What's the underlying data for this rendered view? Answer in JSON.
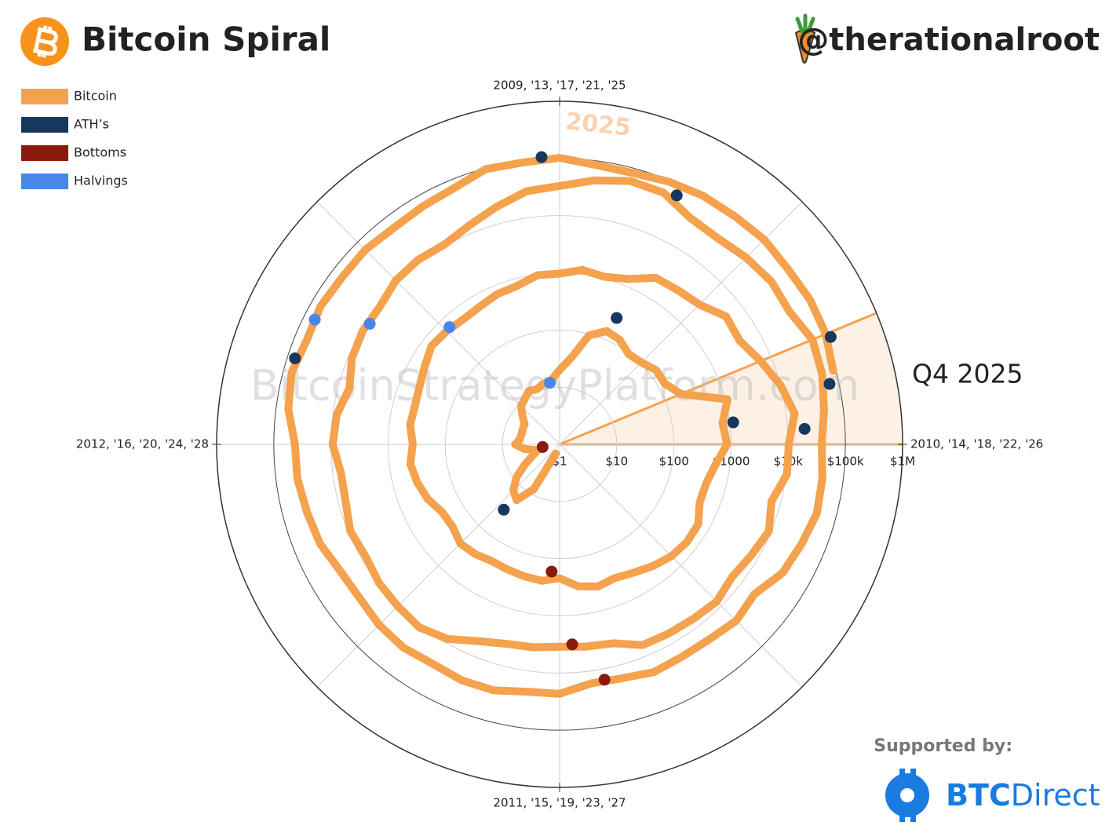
{
  "chart_data": {
    "type": "polar_spiral",
    "title": "Bitcoin Spiral",
    "handle": "@therationalroot",
    "sponsor": {
      "label": "Supported by:",
      "brand_bold": "BTC",
      "brand_light": "Direct"
    },
    "watermark": "BitcoinStrategyPlatform.com",
    "cycle_years": 4,
    "theta_start": 2009,
    "r_log": true,
    "rlim": [
      1,
      1000000
    ],
    "rticks": [
      {
        "value": 1,
        "label": "$1"
      },
      {
        "value": 10,
        "label": "$10"
      },
      {
        "value": 100,
        "label": "$100"
      },
      {
        "value": 1000,
        "label": "$1000"
      },
      {
        "value": 10000,
        "label": "$10k"
      },
      {
        "value": 100000,
        "label": "$100k"
      },
      {
        "value": 1000000,
        "label": "$1M"
      }
    ],
    "theta_ticks": [
      {
        "value": 2009,
        "label": "2009, '13, '17, '21, '25"
      },
      {
        "value": 2010,
        "label": "2010, '14, '18, '22, '26"
      },
      {
        "value": 2011,
        "label": "2011, '15, '19, '23, '27"
      },
      {
        "value": 2012,
        "label": "2012, '16, '20, '24, '28"
      }
    ],
    "highlight": {
      "label": "Q4 2025",
      "range": [
        2025.75,
        2026
      ],
      "color": "#f4a24e"
    },
    "year_annotation": {
      "text": "2025",
      "x": 2025
    },
    "series": [
      {
        "name": "Bitcoin",
        "color": "#f4a24e",
        "kind": "line",
        "x": [
          2011.25,
          2011.333,
          2011.417,
          2011.5,
          2011.583,
          2011.667,
          2011.75,
          2011.833,
          2011.917,
          2012,
          2012.083,
          2012.167,
          2012.25,
          2012.333,
          2012.417,
          2012.5,
          2012.583,
          2012.667,
          2012.75,
          2012.833,
          2012.917,
          2013,
          2013.083,
          2013.167,
          2013.25,
          2013.333,
          2013.417,
          2013.5,
          2013.583,
          2013.667,
          2013.75,
          2013.833,
          2013.917,
          2014,
          2014.083,
          2014.167,
          2014.25,
          2014.333,
          2014.417,
          2014.5,
          2014.583,
          2014.667,
          2014.75,
          2014.833,
          2014.917,
          2015,
          2015.083,
          2015.167,
          2015.25,
          2015.333,
          2015.417,
          2015.5,
          2015.583,
          2015.667,
          2015.75,
          2015.833,
          2015.917,
          2016,
          2016.083,
          2016.167,
          2016.25,
          2016.333,
          2016.417,
          2016.5,
          2016.583,
          2016.667,
          2016.75,
          2016.833,
          2016.917,
          2017,
          2017.083,
          2017.167,
          2017.25,
          2017.333,
          2017.417,
          2017.5,
          2017.583,
          2017.667,
          2017.75,
          2017.833,
          2017.917,
          2018,
          2018.083,
          2018.167,
          2018.25,
          2018.333,
          2018.417,
          2018.5,
          2018.583,
          2018.667,
          2018.75,
          2018.833,
          2018.917,
          2019,
          2019.083,
          2019.167,
          2019.25,
          2019.333,
          2019.417,
          2019.5,
          2019.583,
          2019.667,
          2019.75,
          2019.833,
          2019.917,
          2020,
          2020.083,
          2020.167,
          2020.25,
          2020.333,
          2020.417,
          2020.5,
          2020.583,
          2020.667,
          2020.75,
          2020.833,
          2020.917,
          2021,
          2021.083,
          2021.167,
          2021.25,
          2021.333,
          2021.417,
          2021.5,
          2021.583,
          2021.667,
          2021.75,
          2021.833,
          2021.917,
          2022,
          2022.083,
          2022.167,
          2022.25,
          2022.333,
          2022.417,
          2022.5,
          2022.583,
          2022.667,
          2022.75,
          2022.833,
          2022.917,
          2023,
          2023.083,
          2023.167,
          2023.25,
          2023.333,
          2023.417,
          2023.5,
          2023.583,
          2023.667,
          2023.75,
          2023.833,
          2023.917,
          2024,
          2024.083,
          2024.167,
          2024.25,
          2024.333,
          2024.417,
          2024.5,
          2024.583,
          2024.667,
          2024.75,
          2024.833,
          2024.917,
          2025,
          2025.083,
          2025.167,
          2025.25,
          2025.333,
          2025.417,
          2025.5,
          2025.583,
          2025.667,
          2025.75,
          2025.833
        ],
        "values": [
          1.5,
          8,
          17,
          14,
          9,
          5,
          3.2,
          2.5,
          4.2,
          6,
          5,
          4.9,
          5,
          5.1,
          6.6,
          9,
          10,
          12,
          11,
          12.5,
          13.5,
          20,
          33,
          93,
          140,
          128,
          97,
          106,
          135,
          133,
          200,
          1100,
          750,
          850,
          560,
          450,
          450,
          630,
          640,
          585,
          480,
          390,
          340,
          375,
          320,
          220,
          255,
          245,
          235,
          230,
          263,
          285,
          230,
          236,
          315,
          378,
          430,
          370,
          435,
          416,
          448,
          530,
          670,
          625,
          575,
          610,
          700,
          740,
          960,
          970,
          1190,
          1080,
          1350,
          2300,
          2500,
          2870,
          4700,
          4300,
          6400,
          10000,
          14000,
          10200,
          10300,
          6900,
          9200,
          7500,
          6400,
          7700,
          7000,
          6600,
          6300,
          4000,
          3700,
          3450,
          3800,
          4100,
          5300,
          8500,
          10800,
          10100,
          9600,
          8300,
          9200,
          7500,
          7200,
          9350,
          8600,
          6400,
          8600,
          9450,
          9150,
          11300,
          11650,
          10800,
          13800,
          19700,
          29000,
          33100,
          45200,
          58800,
          57700,
          37300,
          35000,
          41500,
          47100,
          43800,
          61300,
          57000,
          46300,
          38500,
          43200,
          45500,
          37700,
          31800,
          19900,
          23300,
          20000,
          19400,
          20500,
          17200,
          16500,
          23100,
          23100,
          28500,
          29300,
          27200,
          30500,
          29200,
          25900,
          27000,
          34500,
          37700,
          42300,
          42600,
          61200,
          71300,
          60700,
          67500,
          62700,
          64600,
          58900,
          63300,
          70200,
          96400,
          93400,
          102400,
          84400,
          82500,
          94200,
          104600,
          107200,
          115800,
          108200,
          114000,
          109600,
          90400
        ]
      },
      {
        "name": "ATH’s",
        "color": "#17375e",
        "kind": "marker",
        "x": [
          2011.45,
          2013.27,
          2013.92,
          2017.96,
          2021.28,
          2021.86,
          2024.2,
          2024.96,
          2025.76
        ],
        "values": [
          31.9,
          266,
          1150,
          19700,
          64800,
          69000,
          73700,
          108000,
          126000
        ]
      },
      {
        "name": "Bottoms",
        "color": "#8b1a0e",
        "kind": "marker",
        "x": [
          2011.9,
          2015.04,
          2018.96,
          2022.88
        ],
        "values": [
          2,
          170,
          3200,
          15500
        ]
      },
      {
        "name": "Halvings",
        "color": "#4a86e8",
        "kind": "marker",
        "x": [
          2012.9,
          2016.52,
          2020.36,
          2024.3
        ],
        "values": [
          12.3,
          650,
          8600,
          64000
        ]
      }
    ]
  }
}
